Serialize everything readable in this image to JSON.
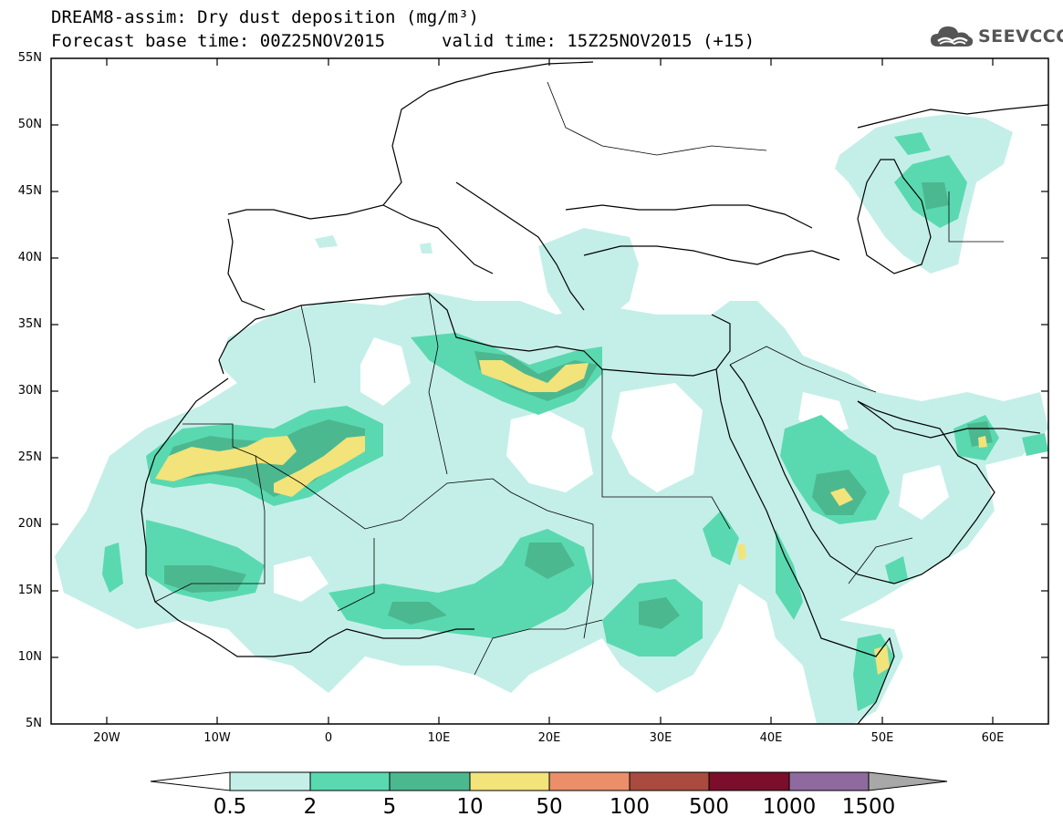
{
  "title": {
    "line1": "DREAM8-assim: Dry dust deposition (mg/m³)",
    "base_time": "Forecast base time: 00Z25NOV2015",
    "valid_time": "valid time: 15Z25NOV2015 (+15)"
  },
  "logo": {
    "text": "SEEVCCC",
    "icon": "cloud-icon"
  },
  "map": {
    "lon_range": [
      -25,
      65
    ],
    "lat_range": [
      5,
      55
    ],
    "lat_labels": [
      "55N",
      "50N",
      "45N",
      "40N",
      "35N",
      "30N",
      "25N",
      "20N",
      "15N",
      "10N",
      "5N"
    ],
    "lon_labels": [
      "20W",
      "10W",
      "0",
      "10E",
      "20E",
      "30E",
      "40E",
      "50E",
      "60E"
    ]
  },
  "colorbar": {
    "labels": [
      "0.5",
      "2",
      "5",
      "10",
      "50",
      "100",
      "500",
      "1000",
      "1500"
    ],
    "colors": [
      "#c4efe8",
      "#5ad9b0",
      "#4cb890",
      "#f2e37b",
      "#ea8f6a",
      "#a94b3f",
      "#7a0e2b",
      "#8e6a9e",
      "#a8a8a8"
    ]
  },
  "dust_levels": {
    "c1": "#c4efe8",
    "c2": "#5ad9b0",
    "c3": "#4cb890",
    "c4": "#f2e37b"
  }
}
